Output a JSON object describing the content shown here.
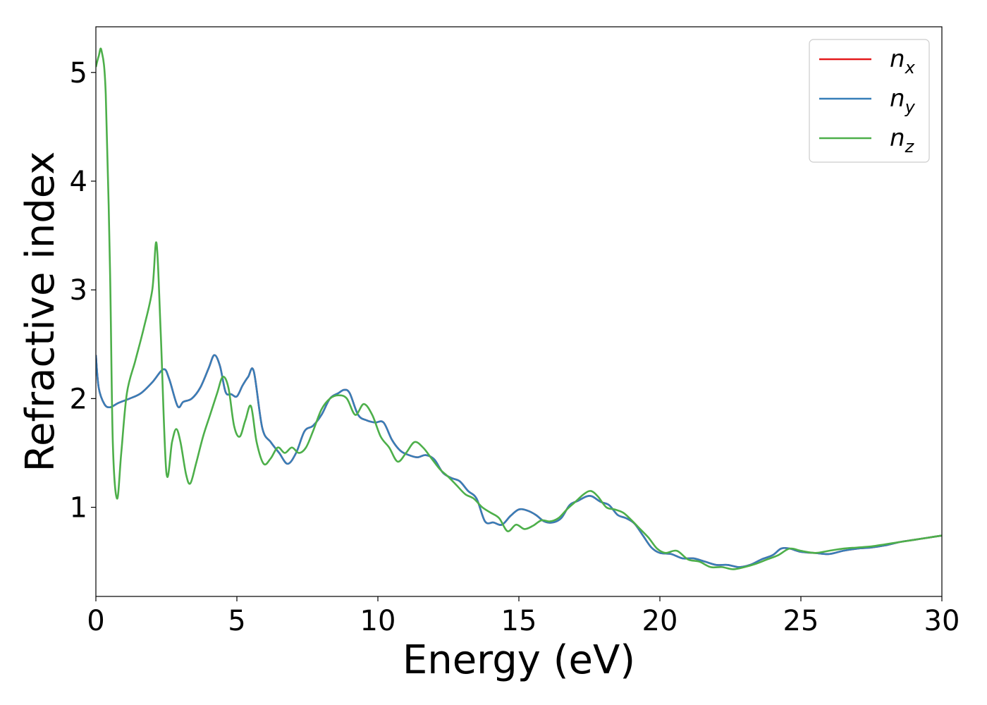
{
  "chart_data": {
    "type": "line",
    "xlabel": "Energy (eV)",
    "ylabel": "Refractive index",
    "xlim": [
      0,
      30
    ],
    "ylim": [
      0.18,
      5.42
    ],
    "xticks": [
      "0",
      "5",
      "10",
      "15",
      "20",
      "25",
      "30"
    ],
    "yticks": [
      "1",
      "2",
      "3",
      "4",
      "5"
    ],
    "grid": false,
    "legend_position": "top-right",
    "series": [
      {
        "name": "n",
        "subscript": "x",
        "color": "#e41a1c",
        "x": [
          0,
          0.1,
          0.3,
          0.5,
          0.8,
          1.2,
          1.6,
          2.0,
          2.4,
          2.6,
          2.9,
          3.1,
          3.4,
          3.7,
          4.0,
          4.2,
          4.4,
          4.6,
          4.8,
          5.0,
          5.2,
          5.4,
          5.6,
          5.9,
          6.2,
          6.5,
          6.8,
          7.1,
          7.4,
          7.7,
          8.0,
          8.3,
          8.6,
          8.8,
          9.0,
          9.3,
          9.6,
          9.9,
          10.2,
          10.5,
          10.8,
          11.1,
          11.4,
          11.7,
          12.0,
          12.3,
          12.6,
          12.9,
          13.2,
          13.5,
          13.8,
          14.1,
          14.4,
          14.7,
          15.0,
          15.3,
          15.6,
          15.9,
          16.2,
          16.5,
          16.8,
          17.1,
          17.4,
          17.6,
          17.9,
          18.2,
          18.5,
          18.8,
          19.1,
          19.4,
          19.7,
          20.0,
          20.4,
          20.8,
          21.2,
          21.6,
          22.0,
          22.4,
          22.8,
          23.2,
          23.6,
          24.0,
          24.3,
          24.6,
          25.0,
          25.5,
          26.0,
          26.5,
          27.0,
          27.5,
          28.0,
          28.5,
          29.0,
          29.5,
          30.0
        ],
        "y": [
          2.4,
          2.1,
          1.95,
          1.92,
          1.96,
          2.0,
          2.05,
          2.15,
          2.27,
          2.18,
          1.93,
          1.97,
          2.0,
          2.1,
          2.28,
          2.4,
          2.3,
          2.06,
          2.04,
          2.02,
          2.12,
          2.2,
          2.25,
          1.73,
          1.6,
          1.5,
          1.4,
          1.5,
          1.7,
          1.75,
          1.85,
          2.0,
          2.05,
          2.08,
          2.05,
          1.85,
          1.8,
          1.78,
          1.78,
          1.62,
          1.52,
          1.48,
          1.46,
          1.48,
          1.44,
          1.32,
          1.27,
          1.24,
          1.15,
          1.08,
          0.87,
          0.86,
          0.84,
          0.92,
          0.98,
          0.97,
          0.93,
          0.87,
          0.86,
          0.9,
          1.02,
          1.06,
          1.1,
          1.1,
          1.05,
          1.02,
          0.93,
          0.9,
          0.85,
          0.74,
          0.63,
          0.58,
          0.57,
          0.53,
          0.53,
          0.5,
          0.47,
          0.47,
          0.45,
          0.47,
          0.52,
          0.56,
          0.62,
          0.62,
          0.59,
          0.58,
          0.57,
          0.6,
          0.62,
          0.63,
          0.65,
          0.68,
          0.7,
          0.72,
          0.74
        ]
      },
      {
        "name": "n",
        "subscript": "y",
        "color": "#377eb8",
        "x": [
          0,
          0.1,
          0.3,
          0.5,
          0.8,
          1.2,
          1.6,
          2.0,
          2.4,
          2.6,
          2.9,
          3.1,
          3.4,
          3.7,
          4.0,
          4.2,
          4.4,
          4.6,
          4.8,
          5.0,
          5.2,
          5.4,
          5.6,
          5.9,
          6.2,
          6.5,
          6.8,
          7.1,
          7.4,
          7.7,
          8.0,
          8.3,
          8.6,
          8.8,
          9.0,
          9.3,
          9.6,
          9.9,
          10.2,
          10.5,
          10.8,
          11.1,
          11.4,
          11.7,
          12.0,
          12.3,
          12.6,
          12.9,
          13.2,
          13.5,
          13.8,
          14.1,
          14.4,
          14.7,
          15.0,
          15.3,
          15.6,
          15.9,
          16.2,
          16.5,
          16.8,
          17.1,
          17.4,
          17.6,
          17.9,
          18.2,
          18.5,
          18.8,
          19.1,
          19.4,
          19.7,
          20.0,
          20.4,
          20.8,
          21.2,
          21.6,
          22.0,
          22.4,
          22.8,
          23.2,
          23.6,
          24.0,
          24.3,
          24.6,
          25.0,
          25.5,
          26.0,
          26.5,
          27.0,
          27.5,
          28.0,
          28.5,
          29.0,
          29.5,
          30.0
        ],
        "y": [
          2.4,
          2.1,
          1.95,
          1.92,
          1.96,
          2.0,
          2.05,
          2.15,
          2.27,
          2.18,
          1.93,
          1.97,
          2.0,
          2.1,
          2.28,
          2.4,
          2.3,
          2.06,
          2.04,
          2.02,
          2.12,
          2.2,
          2.25,
          1.73,
          1.6,
          1.5,
          1.4,
          1.5,
          1.7,
          1.75,
          1.85,
          2.0,
          2.05,
          2.08,
          2.05,
          1.85,
          1.8,
          1.78,
          1.78,
          1.62,
          1.52,
          1.48,
          1.46,
          1.48,
          1.44,
          1.32,
          1.27,
          1.24,
          1.15,
          1.08,
          0.87,
          0.86,
          0.84,
          0.92,
          0.98,
          0.97,
          0.93,
          0.87,
          0.86,
          0.9,
          1.02,
          1.06,
          1.1,
          1.1,
          1.05,
          1.02,
          0.93,
          0.9,
          0.85,
          0.74,
          0.63,
          0.58,
          0.57,
          0.53,
          0.53,
          0.5,
          0.47,
          0.47,
          0.45,
          0.47,
          0.52,
          0.56,
          0.62,
          0.62,
          0.59,
          0.58,
          0.57,
          0.6,
          0.62,
          0.63,
          0.65,
          0.68,
          0.7,
          0.72,
          0.74
        ]
      },
      {
        "name": "n",
        "subscript": "z",
        "color": "#4daf4a",
        "x": [
          0,
          0.1,
          0.2,
          0.35,
          0.5,
          0.6,
          0.75,
          0.9,
          1.1,
          1.4,
          1.7,
          2.0,
          2.15,
          2.3,
          2.5,
          2.7,
          2.85,
          3.0,
          3.2,
          3.35,
          3.55,
          3.8,
          4.05,
          4.3,
          4.5,
          4.7,
          4.9,
          5.1,
          5.3,
          5.5,
          5.7,
          5.95,
          6.2,
          6.45,
          6.7,
          6.95,
          7.2,
          7.45,
          7.7,
          8.0,
          8.3,
          8.6,
          8.9,
          9.2,
          9.5,
          9.8,
          10.1,
          10.4,
          10.7,
          11.0,
          11.3,
          11.6,
          11.9,
          12.2,
          12.5,
          12.8,
          13.1,
          13.4,
          13.7,
          14.0,
          14.3,
          14.6,
          14.9,
          15.2,
          15.5,
          15.8,
          16.1,
          16.4,
          16.7,
          17.0,
          17.3,
          17.55,
          17.8,
          18.1,
          18.4,
          18.7,
          19.0,
          19.3,
          19.6,
          19.9,
          20.2,
          20.6,
          21.0,
          21.4,
          21.8,
          22.2,
          22.6,
          23.0,
          23.4,
          23.8,
          24.2,
          24.6,
          25.0,
          25.5,
          26.0,
          26.5,
          27.0,
          27.5,
          28.0,
          28.5,
          29.0,
          29.5,
          30.0
        ],
        "y": [
          5.05,
          5.15,
          5.2,
          4.8,
          3.2,
          1.6,
          1.08,
          1.5,
          2.05,
          2.35,
          2.65,
          3.0,
          3.43,
          2.6,
          1.32,
          1.6,
          1.72,
          1.6,
          1.3,
          1.22,
          1.4,
          1.65,
          1.85,
          2.05,
          2.2,
          2.1,
          1.75,
          1.65,
          1.8,
          1.93,
          1.6,
          1.4,
          1.45,
          1.55,
          1.5,
          1.55,
          1.5,
          1.55,
          1.7,
          1.9,
          2.0,
          2.03,
          2.0,
          1.85,
          1.95,
          1.85,
          1.65,
          1.55,
          1.42,
          1.5,
          1.6,
          1.55,
          1.45,
          1.35,
          1.28,
          1.2,
          1.12,
          1.08,
          1.0,
          0.95,
          0.9,
          0.78,
          0.84,
          0.8,
          0.83,
          0.88,
          0.87,
          0.9,
          0.98,
          1.05,
          1.12,
          1.15,
          1.1,
          1.0,
          0.98,
          0.95,
          0.88,
          0.8,
          0.72,
          0.62,
          0.58,
          0.6,
          0.52,
          0.5,
          0.45,
          0.45,
          0.43,
          0.45,
          0.48,
          0.52,
          0.56,
          0.62,
          0.6,
          0.58,
          0.6,
          0.62,
          0.63,
          0.64,
          0.66,
          0.68,
          0.7,
          0.72,
          0.74
        ]
      }
    ]
  }
}
